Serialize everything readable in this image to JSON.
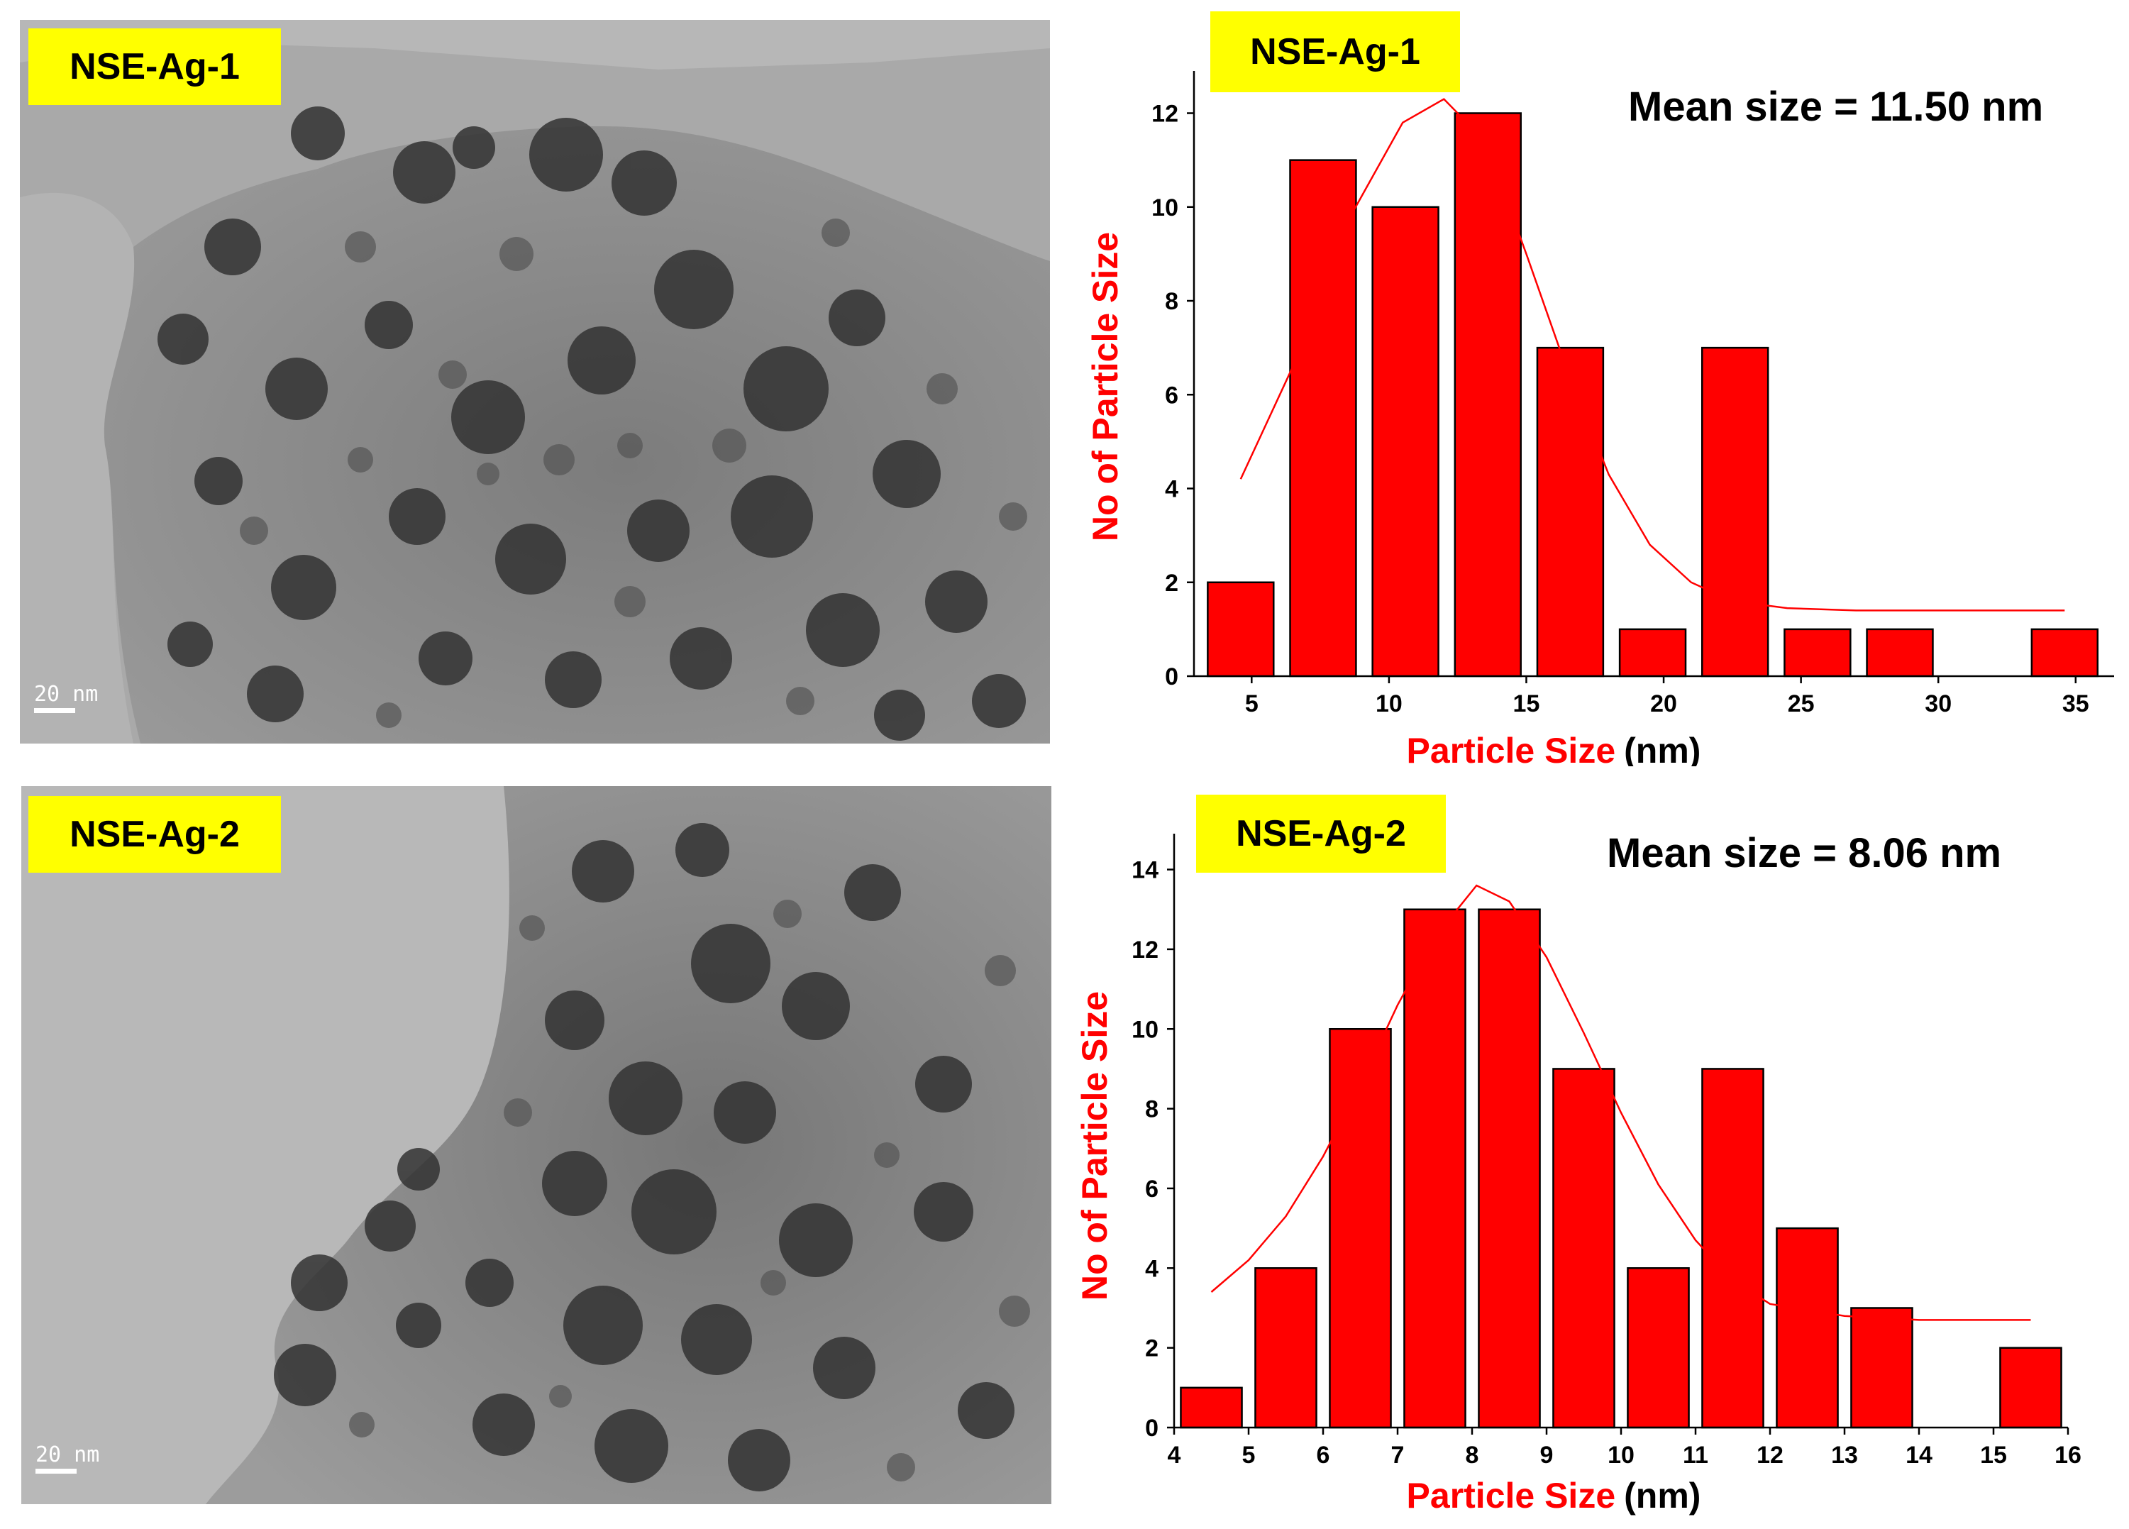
{
  "panels": [
    {
      "sample_label": "NSE-Ag-1",
      "scale_bar": "20 nm"
    },
    {
      "sample_label": "NSE-Ag-2",
      "scale_bar": "20 nm"
    }
  ],
  "chart_data": [
    {
      "type": "bar",
      "title": "NSE-Ag-1",
      "annotation": "Mean size = 11.50 nm",
      "xlabel": "Particle Size",
      "xlabel_unit": "(nm)",
      "ylabel": "No of Particle Size",
      "xlim": [
        2.9,
        36.4
      ],
      "ylim": [
        0,
        12.9
      ],
      "xticks": [
        5,
        10,
        15,
        20,
        25,
        30,
        35
      ],
      "yticks": [
        0,
        2,
        4,
        6,
        8,
        10,
        12
      ],
      "bar_width": 2.4,
      "x": [
        4.6,
        7.6,
        10.6,
        13.6,
        16.6,
        19.6,
        22.6,
        25.6,
        28.6,
        34.6
      ],
      "values": [
        2,
        11,
        10,
        12,
        7,
        1,
        7,
        1,
        1,
        1
      ],
      "bar_color": "#ff0000",
      "fit": {
        "type": "gaussian",
        "color": "#ff0000",
        "points": [
          [
            4.6,
            4.2
          ],
          [
            6.5,
            6.6
          ],
          [
            8.5,
            9.7
          ],
          [
            10.5,
            11.8
          ],
          [
            12.0,
            12.3
          ],
          [
            13.5,
            11.4
          ],
          [
            15.0,
            9.0
          ],
          [
            16.5,
            6.5
          ],
          [
            18.0,
            4.3
          ],
          [
            19.5,
            2.8
          ],
          [
            21.0,
            2.0
          ],
          [
            22.5,
            1.6
          ],
          [
            24.5,
            1.45
          ],
          [
            27.0,
            1.4
          ],
          [
            30.0,
            1.4
          ],
          [
            34.6,
            1.4
          ]
        ]
      },
      "grid": false
    },
    {
      "type": "bar",
      "title": "NSE-Ag-2",
      "annotation": "Mean size = 8.06 nm",
      "xlabel": "Particle Size",
      "xlabel_unit": "(nm)",
      "ylabel": "No of Particle Size",
      "xlim": [
        4,
        16
      ],
      "ylim": [
        0,
        14.9
      ],
      "xticks": [
        4,
        5,
        6,
        7,
        8,
        9,
        10,
        11,
        12,
        13,
        14,
        15,
        16
      ],
      "yticks": [
        0,
        2,
        4,
        6,
        8,
        10,
        12,
        14
      ],
      "bar_width": 0.82,
      "x": [
        4.5,
        5.5,
        6.5,
        7.5,
        8.5,
        9.5,
        10.5,
        11.5,
        12.5,
        13.5,
        15.5
      ],
      "values": [
        1,
        4,
        10,
        13,
        13,
        9,
        4,
        9,
        5,
        3,
        2
      ],
      "bar_color": "#ff0000",
      "fit": {
        "type": "gaussian",
        "color": "#ff0000",
        "points": [
          [
            4.5,
            3.4
          ],
          [
            5.0,
            4.2
          ],
          [
            5.5,
            5.3
          ],
          [
            6.0,
            6.8
          ],
          [
            6.5,
            8.6
          ],
          [
            7.0,
            10.6
          ],
          [
            7.5,
            12.3
          ],
          [
            8.06,
            13.6
          ],
          [
            8.5,
            13.2
          ],
          [
            9.0,
            11.8
          ],
          [
            9.5,
            9.9
          ],
          [
            10.0,
            7.9
          ],
          [
            10.5,
            6.1
          ],
          [
            11.0,
            4.7
          ],
          [
            11.5,
            3.7
          ],
          [
            12.0,
            3.1
          ],
          [
            13.0,
            2.8
          ],
          [
            14.0,
            2.7
          ],
          [
            15.5,
            2.7
          ]
        ]
      },
      "grid": false
    }
  ]
}
